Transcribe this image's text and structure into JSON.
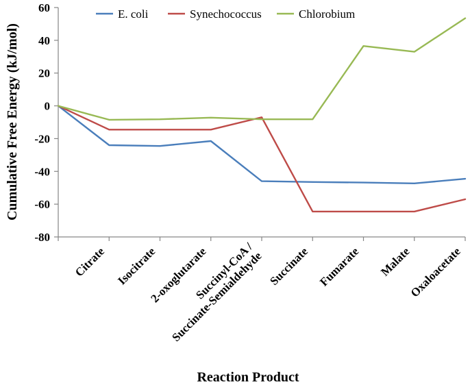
{
  "chart_data": {
    "type": "line",
    "title": "",
    "xlabel": "Reaction Product",
    "ylabel": "Cumulative Free Energy (kJ/mol)",
    "ylim": [
      -80,
      60
    ],
    "yticks": [
      60,
      40,
      20,
      0,
      -20,
      -40,
      -60,
      -80
    ],
    "yticklabels": [
      "60",
      "40",
      "20",
      "0",
      "-20",
      "-40",
      "-60",
      "-80"
    ],
    "grid": false,
    "legend_position": "top",
    "categories": [
      "",
      "Citrate",
      "Isocitrate",
      "2-oxoglutarate",
      "Succinyl-CoA / Succinate-Semialdehyde",
      "Succinate",
      "Fumarate",
      "Malate",
      "Oxaloacetate"
    ],
    "category_labels": [
      [
        "Citrate"
      ],
      [
        "Isocitrate"
      ],
      [
        "2-oxoglutarate"
      ],
      [
        "Succinyl-CoA /",
        "Succinate-Semialdehyde"
      ],
      [
        "Succinate"
      ],
      [
        "Fumarate"
      ],
      [
        "Malate"
      ],
      [
        "Oxaloacetate"
      ]
    ],
    "series": [
      {
        "name": "E. coli",
        "color": "#4A7EBB",
        "values": [
          0,
          -24,
          -24.5,
          -21.5,
          -46,
          -46.5,
          -46.8,
          -47.3,
          -44.5
        ]
      },
      {
        "name": "Synechococcus",
        "color": "#BE4B48",
        "values": [
          0,
          -14.5,
          -14.5,
          -14.5,
          -7,
          -64.5,
          -64.5,
          -64.5,
          -57
        ]
      },
      {
        "name": "Chlorobium",
        "color": "#98B954",
        "values": [
          0,
          -8.5,
          -8.2,
          -7.2,
          -8.2,
          -8.2,
          36.5,
          33,
          53.5
        ]
      }
    ]
  }
}
